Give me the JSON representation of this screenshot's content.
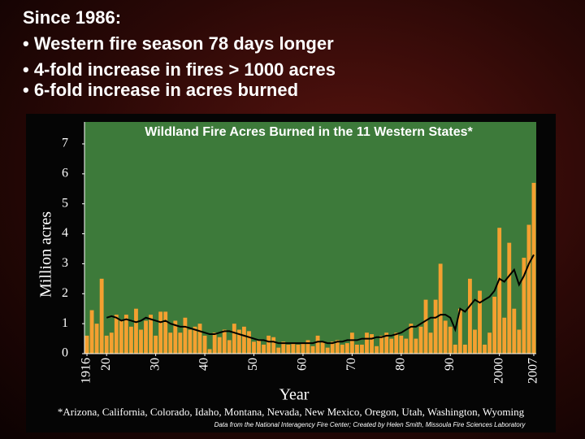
{
  "slide": {
    "lines": [
      "Since 1986:",
      "• Western fire season 78 days longer",
      "• 4-fold increase in fires > 1000 acres",
      "• 6-fold increase in acres burned"
    ]
  },
  "chart_data": {
    "type": "bar",
    "title": "Wildland Fire Acres Burned in the 11 Western States*",
    "xlabel": "Year",
    "ylabel": "Million acres",
    "footnote": "*Arizona, California, Colorado, Idaho, Montana, Nevada, New Mexico, Oregon, Utah, Washington, Wyoming",
    "source": "Data from the National Interagency Fire Center; Created by Helen Smith, Missoula Fire Sciences Laboratory",
    "background": "#3d7a3a",
    "x": [
      1916,
      1917,
      1918,
      1919,
      1920,
      1921,
      1922,
      1923,
      1924,
      1925,
      1926,
      1927,
      1928,
      1929,
      1930,
      1931,
      1932,
      1933,
      1934,
      1935,
      1936,
      1937,
      1938,
      1939,
      1940,
      1941,
      1942,
      1943,
      1944,
      1945,
      1946,
      1947,
      1948,
      1949,
      1950,
      1951,
      1952,
      1953,
      1954,
      1955,
      1956,
      1957,
      1958,
      1959,
      1960,
      1961,
      1962,
      1963,
      1964,
      1965,
      1966,
      1967,
      1968,
      1969,
      1970,
      1971,
      1972,
      1973,
      1974,
      1975,
      1976,
      1977,
      1978,
      1979,
      1980,
      1981,
      1982,
      1983,
      1984,
      1985,
      1986,
      1987,
      1988,
      1989,
      1990,
      1991,
      1992,
      1993,
      1994,
      1995,
      1996,
      1997,
      1998,
      1999,
      2000,
      2001,
      2002,
      2003,
      2004,
      2005,
      2006,
      2007
    ],
    "series": [
      {
        "type": "bar",
        "color": "#f4a030",
        "values": [
          0.6,
          1.45,
          1.0,
          2.5,
          0.6,
          0.7,
          1.3,
          1.1,
          1.3,
          0.9,
          1.5,
          0.8,
          1.1,
          1.3,
          0.6,
          1.4,
          1.4,
          0.7,
          1.1,
          0.7,
          1.2,
          0.8,
          0.9,
          1.0,
          0.6,
          0.15,
          0.7,
          0.55,
          0.8,
          0.45,
          1.0,
          0.8,
          0.9,
          0.75,
          0.4,
          0.45,
          0.3,
          0.6,
          0.55,
          0.2,
          0.4,
          0.3,
          0.35,
          0.3,
          0.35,
          0.45,
          0.25,
          0.6,
          0.4,
          0.2,
          0.4,
          0.45,
          0.3,
          0.35,
          0.7,
          0.3,
          0.3,
          0.7,
          0.65,
          0.25,
          0.6,
          0.7,
          0.5,
          0.7,
          0.6,
          0.5,
          1.0,
          0.5,
          0.9,
          1.8,
          0.7,
          1.8,
          3.0,
          1.1,
          0.9,
          0.3,
          1.5,
          0.3,
          2.5,
          0.8,
          2.1,
          0.3,
          0.7,
          1.9,
          4.2,
          1.2,
          3.7,
          1.5,
          0.8,
          3.2,
          4.3,
          5.7
        ]
      },
      {
        "type": "line",
        "color": "#000000",
        "values": [
          null,
          null,
          null,
          null,
          1.2,
          1.25,
          1.2,
          1.1,
          1.15,
          1.1,
          1.05,
          1.1,
          1.2,
          1.15,
          1.1,
          1.05,
          1.1,
          1.0,
          0.95,
          0.9,
          0.9,
          0.85,
          0.8,
          0.75,
          0.7,
          0.65,
          0.65,
          0.7,
          0.75,
          0.75,
          0.7,
          0.65,
          0.6,
          0.55,
          0.5,
          0.45,
          0.45,
          0.4,
          0.4,
          0.35,
          0.35,
          0.35,
          0.35,
          0.35,
          0.35,
          0.35,
          0.35,
          0.4,
          0.4,
          0.35,
          0.35,
          0.4,
          0.4,
          0.45,
          0.45,
          0.45,
          0.5,
          0.5,
          0.5,
          0.55,
          0.55,
          0.6,
          0.6,
          0.65,
          0.7,
          0.8,
          0.9,
          0.9,
          1.0,
          1.1,
          1.2,
          1.2,
          1.3,
          1.3,
          1.2,
          0.8,
          1.5,
          1.4,
          1.6,
          1.8,
          1.7,
          1.8,
          1.9,
          2.1,
          2.5,
          2.4,
          2.6,
          2.8,
          2.3,
          2.6,
          3.0,
          3.3
        ]
      }
    ],
    "xlim": [
      1915.5,
      2007.5
    ],
    "xticks": [
      1916,
      {
        "value": 1920,
        "label": "20"
      },
      {
        "value": 1930,
        "label": "30"
      },
      {
        "value": 1940,
        "label": "40"
      },
      {
        "value": 1950,
        "label": "50"
      },
      {
        "value": 1960,
        "label": "60"
      },
      {
        "value": 1970,
        "label": "70"
      },
      {
        "value": 1980,
        "label": "80"
      },
      {
        "value": 1990,
        "label": "90"
      },
      2000,
      2007
    ],
    "ylim": [
      0,
      7
    ],
    "yticks": [
      0,
      1,
      2,
      3,
      4,
      5,
      6,
      7
    ]
  }
}
